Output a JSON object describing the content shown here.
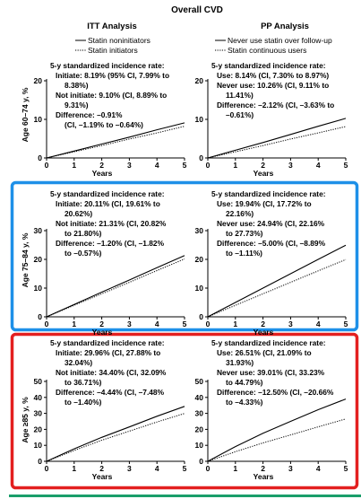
{
  "figure": {
    "title": "Overall CVD",
    "columns": [
      "ITT Analysis",
      "PP Analysis"
    ],
    "legends": [
      [
        {
          "label": "Statin noninitiators",
          "style": "solid"
        },
        {
          "label": "Statin initiators",
          "style": "dotted"
        }
      ],
      [
        {
          "label": "Never use statin over follow-up",
          "style": "solid"
        },
        {
          "label": "Statin continuous users",
          "style": "dotted"
        }
      ]
    ],
    "row_labels": [
      "Age 60–74 y, %",
      "Age 75–84 y, %",
      "Age ≥85 y, %"
    ],
    "xlabel": "Years",
    "highlight_colors": {
      "row2": "#1e90e8",
      "row3": "#e32020"
    },
    "bottom_rule_color": "#1a9e6a"
  },
  "chart_data": [
    {
      "type": "line",
      "row": 0,
      "col": 0,
      "x": [
        0,
        1,
        2,
        3,
        4,
        5
      ],
      "xlim": [
        0,
        5
      ],
      "ylim": [
        0,
        20
      ],
      "yticks": [
        0,
        10,
        20
      ],
      "series": [
        {
          "name": "Statin noninitiators",
          "style": "solid",
          "values": [
            0,
            1.8,
            3.6,
            5.4,
            7.3,
            9.1
          ]
        },
        {
          "name": "Statin initiators",
          "style": "dotted",
          "values": [
            0,
            1.6,
            3.2,
            4.9,
            6.5,
            8.2
          ]
        }
      ],
      "annotation": [
        "5-y standardized incidence rate:",
        "Initiate: 8.19% (95% CI, 7.99% to",
        "8.38%)",
        "Not initiate: 9.10% (CI, 8.89% to",
        "9.31%)",
        "Difference: –0.91%",
        "(CI, –1.19% to –0.64%)"
      ]
    },
    {
      "type": "line",
      "row": 0,
      "col": 1,
      "x": [
        0,
        1,
        2,
        3,
        4,
        5
      ],
      "xlim": [
        0,
        5
      ],
      "ylim": [
        0,
        20
      ],
      "yticks": [
        0,
        10,
        20
      ],
      "series": [
        {
          "name": "Never use statin over follow-up",
          "style": "solid",
          "values": [
            0,
            2.0,
            4.0,
            6.1,
            8.2,
            10.26
          ]
        },
        {
          "name": "Statin continuous users",
          "style": "dotted",
          "values": [
            0,
            1.6,
            3.2,
            4.9,
            6.5,
            8.14
          ]
        }
      ],
      "annotation": [
        "5-y standardized incidence rate:",
        "Use: 8.14% (CI, 7.30% to 8.97%)",
        "Never use: 10.26% (CI, 9.11% to",
        "11.41%)",
        "Difference: –2.12% (CI, –3.63% to",
        "–0.61%)"
      ]
    },
    {
      "type": "line",
      "row": 1,
      "col": 0,
      "x": [
        0,
        1,
        2,
        3,
        4,
        5
      ],
      "xlim": [
        0,
        5
      ],
      "ylim": [
        0,
        30
      ],
      "yticks": [
        0,
        10,
        20,
        30
      ],
      "series": [
        {
          "name": "Statin noninitiators",
          "style": "solid",
          "values": [
            0,
            4.3,
            8.6,
            12.8,
            17.1,
            21.31
          ]
        },
        {
          "name": "Statin initiators",
          "style": "dotted",
          "values": [
            0,
            4.0,
            8.0,
            12.0,
            16.1,
            20.11
          ]
        }
      ],
      "annotation": [
        "5-y standardized incidence rate:",
        "Initiate: 20.11% (CI, 19.61% to",
        "20.62%)",
        "Not initiate: 21.31% (CI, 20.82%",
        "to 21.80%)",
        "Difference: –1.20% (CI, –1.82%",
        "to –0.57%)"
      ]
    },
    {
      "type": "line",
      "row": 1,
      "col": 1,
      "x": [
        0,
        1,
        2,
        3,
        4,
        5
      ],
      "xlim": [
        0,
        5
      ],
      "ylim": [
        0,
        30
      ],
      "yticks": [
        0,
        10,
        20,
        30
      ],
      "series": [
        {
          "name": "Never use statin over follow-up",
          "style": "solid",
          "values": [
            0,
            5.0,
            10.0,
            15.0,
            20.0,
            24.94
          ]
        },
        {
          "name": "Statin continuous users",
          "style": "dotted",
          "values": [
            0,
            4.0,
            8.0,
            12.0,
            16.0,
            19.94
          ]
        }
      ],
      "annotation": [
        "5-y standardized incidence rate:",
        "Use: 19.94% (CI, 17.72% to",
        "22.16%)",
        "Never use: 24.94% (CI, 22.16%",
        "to 27.73%)",
        "Difference: –5.00% (CI, –8.89%",
        "to –1.11%)"
      ]
    },
    {
      "type": "line",
      "row": 2,
      "col": 0,
      "x": [
        0,
        1,
        2,
        3,
        4,
        5
      ],
      "xlim": [
        0,
        5
      ],
      "ylim": [
        0,
        50
      ],
      "yticks": [
        0,
        10,
        20,
        30,
        40,
        50
      ],
      "series": [
        {
          "name": "Statin noninitiators",
          "style": "solid",
          "values": [
            0,
            7.8,
            15.0,
            21.5,
            28.2,
            34.4
          ]
        },
        {
          "name": "Statin initiators",
          "style": "dotted",
          "values": [
            0,
            6.8,
            13.2,
            18.9,
            24.6,
            29.96
          ]
        }
      ],
      "annotation": [
        "5-y standardized incidence rate:",
        "Initiate: 29.96% (CI, 27.88% to",
        "32.04%)",
        "Not initiate: 34.40% (CI, 32.09%",
        "to 36.71%)",
        "Difference: –4.44% (CI, –7.48%",
        "to –1.40%)"
      ]
    },
    {
      "type": "line",
      "row": 2,
      "col": 1,
      "x": [
        0,
        1,
        2,
        3,
        4,
        5
      ],
      "xlim": [
        0,
        5
      ],
      "ylim": [
        0,
        50
      ],
      "yticks": [
        0,
        10,
        20,
        30,
        40,
        50
      ],
      "series": [
        {
          "name": "Never use statin over follow-up",
          "style": "solid",
          "values": [
            0,
            9.2,
            17.6,
            25.0,
            32.3,
            39.01
          ]
        },
        {
          "name": "Statin continuous users",
          "style": "dotted",
          "values": [
            0,
            6.0,
            11.5,
            16.5,
            21.6,
            26.51
          ]
        }
      ],
      "annotation": [
        "5-y standardized incidence rate:",
        "Use: 26.51% (CI, 21.09% to",
        "31.93%)",
        "Never use: 39.01% (CI, 33.23%",
        "to 44.79%)",
        "Difference: –12.50% (CI, –20.66%",
        "to –4.33%)"
      ]
    }
  ]
}
